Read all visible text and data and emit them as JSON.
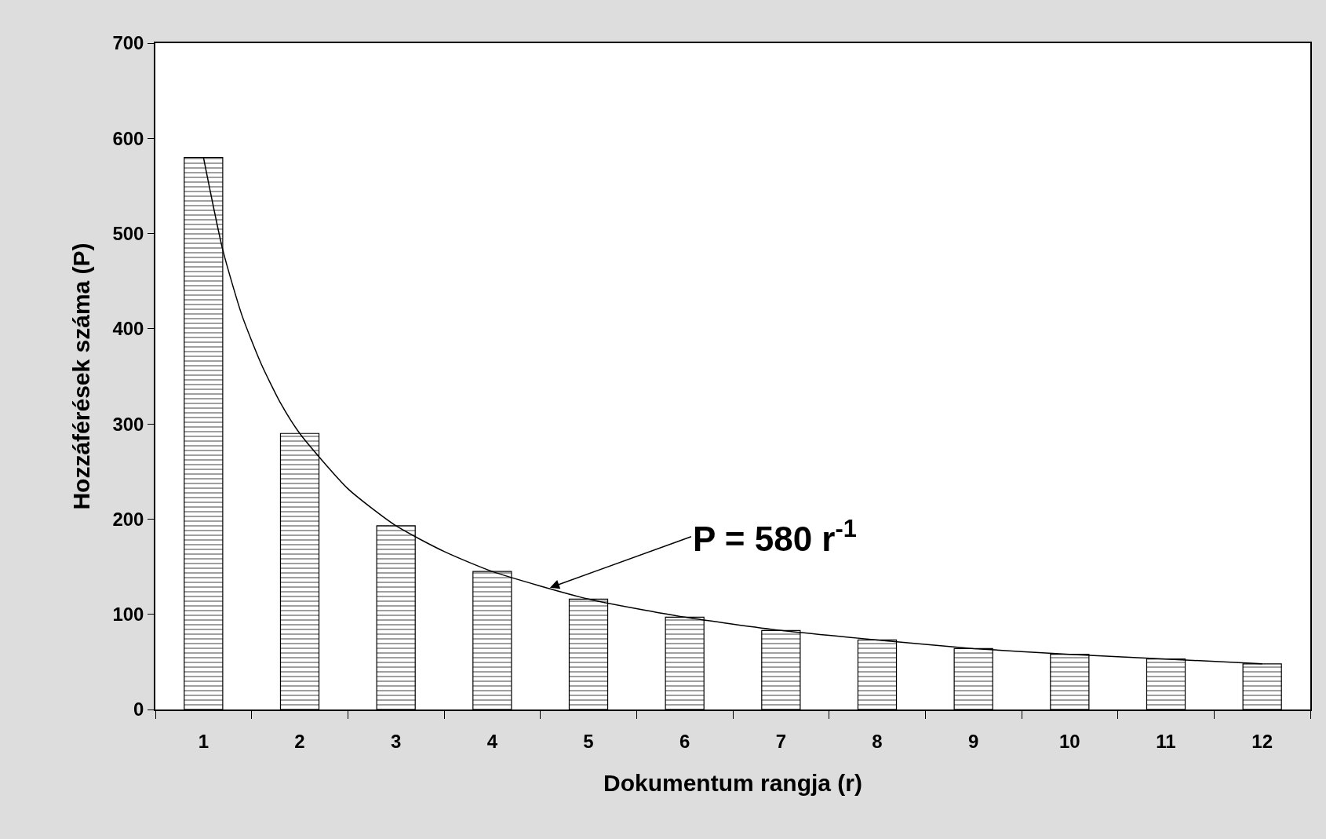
{
  "chart_data": {
    "type": "bar",
    "xlabel": "Dokumentum rangja (r)",
    "ylabel": "Hozzáférések száma (P)",
    "x": [
      1,
      2,
      3,
      4,
      5,
      6,
      7,
      8,
      9,
      10,
      11,
      12
    ],
    "series": [
      {
        "color": "#000000",
        "values": [
          580,
          290,
          193,
          145,
          116,
          97,
          83,
          73,
          64,
          58,
          53,
          48
        ]
      },
      {
        "type": "line",
        "color": "#000000",
        "x": [
          1,
          1.2,
          1.4,
          1.6,
          1.8,
          2,
          2.5,
          3,
          3.5,
          4,
          5,
          6,
          7,
          8,
          9,
          10,
          11,
          12
        ],
        "values": [
          580,
          483,
          414,
          363,
          322,
          290,
          232,
          193,
          166,
          145,
          116,
          97,
          83,
          73,
          64,
          58,
          53,
          48
        ],
        "marker": "none",
        "line_style": "solid"
      }
    ],
    "xlim": [
      0.5,
      12.5
    ],
    "xticks": [
      1,
      2,
      3,
      4,
      5,
      6,
      7,
      8,
      9,
      10,
      11,
      12
    ],
    "ylim": [
      0,
      700
    ],
    "yticks": [
      0,
      100,
      200,
      300,
      400,
      500,
      600,
      700
    ],
    "annotations": [
      {
        "text": "P = 580 r$^{-1}$",
        "x": 4.6,
        "y": 128
      }
    ]
  }
}
